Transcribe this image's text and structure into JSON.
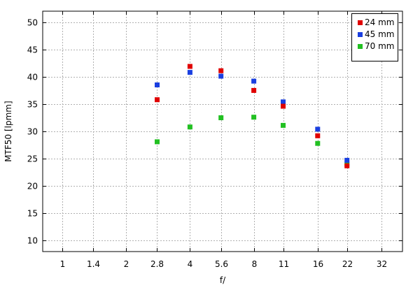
{
  "chart_data": {
    "type": "scatter",
    "xlabel": "f/",
    "ylabel": "MTF50 [lpmm]",
    "x_scale": "log2",
    "x_ticks": [
      {
        "label": "1",
        "value": 1
      },
      {
        "label": "1.4",
        "value": 1.4
      },
      {
        "label": "2",
        "value": 2
      },
      {
        "label": "2.8",
        "value": 2.8
      },
      {
        "label": "4",
        "value": 4
      },
      {
        "label": "5.6",
        "value": 5.6
      },
      {
        "label": "8",
        "value": 8
      },
      {
        "label": "11",
        "value": 11
      },
      {
        "label": "16",
        "value": 16
      },
      {
        "label": "22",
        "value": 22
      },
      {
        "label": "32",
        "value": 32
      }
    ],
    "y_ticks": [
      10,
      15,
      20,
      25,
      30,
      35,
      40,
      45,
      50
    ],
    "ylim": [
      8,
      52
    ],
    "grid": true,
    "legend_position": "top-right",
    "series": [
      {
        "name": "24 mm",
        "color": "#e00000",
        "points": [
          [
            2.8,
            35.8
          ],
          [
            4,
            41.9
          ],
          [
            5.6,
            41.1
          ],
          [
            8,
            37.5
          ],
          [
            11,
            34.6
          ],
          [
            16,
            29.2
          ],
          [
            22,
            23.7
          ]
        ]
      },
      {
        "name": "45 mm",
        "color": "#1a3fe0",
        "points": [
          [
            2.8,
            38.5
          ],
          [
            4,
            40.8
          ],
          [
            5.6,
            40.1
          ],
          [
            8,
            39.2
          ],
          [
            11,
            35.4
          ],
          [
            16,
            30.4
          ],
          [
            22,
            24.7
          ]
        ]
      },
      {
        "name": "70 mm",
        "color": "#22c022",
        "points": [
          [
            2.8,
            28.1
          ],
          [
            4,
            30.8
          ],
          [
            5.6,
            32.5
          ],
          [
            8,
            32.6
          ],
          [
            11,
            31.1
          ],
          [
            16,
            27.8
          ],
          [
            22,
            24.0
          ]
        ]
      }
    ]
  }
}
